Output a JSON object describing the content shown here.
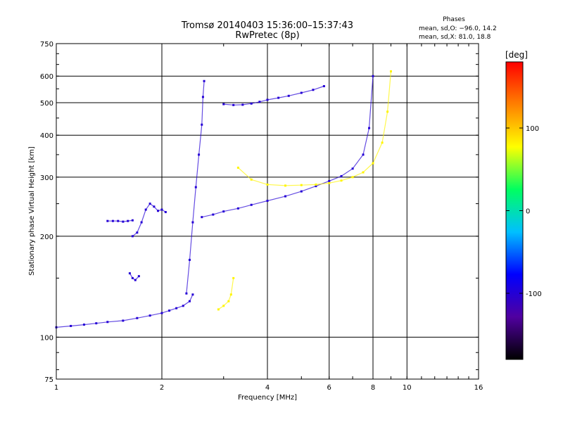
{
  "chart_data": {
    "type": "scatter",
    "title": "Tromsø 20140403 15:36:00–15:37:43",
    "subtitle": "RwPretec (8p)",
    "xlabel": "Frequency [MHz]",
    "ylabel": "Stationary phase Virtual Height [km]",
    "x_scale": "log",
    "y_scale": "log",
    "xlim": [
      1,
      16
    ],
    "ylim": [
      75,
      750
    ],
    "x_ticks": [
      1,
      2,
      4,
      6,
      8,
      10,
      16
    ],
    "y_ticks": [
      75,
      100,
      200,
      300,
      400,
      500,
      600,
      750
    ],
    "x_grid": [
      2,
      4,
      6,
      8,
      10
    ],
    "y_grid": [
      100,
      200,
      300,
      400,
      500,
      600
    ],
    "grid": true,
    "stats": {
      "heading": "Phases",
      "line_o": "mean, sd,O: −96.0, 14.2",
      "line_x": "mean, sd,X:  81.0, 18.8"
    },
    "colorbar": {
      "label": "[deg]",
      "ticks": [
        100,
        0,
        -100
      ],
      "range": [
        -180,
        180
      ],
      "stops": [
        "#000000",
        "#5000a0",
        "#0000ff",
        "#00c0ff",
        "#00ff60",
        "#ffff00",
        "#ff8000",
        "#ff0000"
      ]
    },
    "series": [
      {
        "trace": "low-o",
        "phase": -100,
        "x": [
          1.0,
          1.1,
          1.2,
          1.3,
          1.4,
          1.55,
          1.7,
          1.85,
          2.0,
          2.1,
          2.2,
          2.3,
          2.4,
          2.45
        ],
        "y": [
          107,
          108,
          109,
          110,
          111,
          112,
          114,
          116,
          118,
          120,
          122,
          124,
          128,
          134
        ]
      },
      {
        "trace": "es-patch",
        "phase": -100,
        "x": [
          1.4,
          1.45,
          1.5,
          1.55,
          1.6,
          1.65
        ],
        "y": [
          222,
          222,
          222,
          221,
          222,
          223
        ]
      },
      {
        "trace": "slanted",
        "phase": -100,
        "x": [
          1.65,
          1.7,
          1.75,
          1.8,
          1.85,
          1.9,
          1.95,
          2.0,
          2.05
        ],
        "y": [
          200,
          205,
          220,
          240,
          250,
          245,
          238,
          240,
          236
        ]
      },
      {
        "trace": "low-cusp",
        "phase": -100,
        "x": [
          1.62,
          1.65,
          1.68,
          1.72
        ],
        "y": [
          155,
          150,
          148,
          152
        ]
      },
      {
        "trace": "spread-f-column",
        "phase": -100,
        "x": [
          2.35,
          2.4,
          2.45,
          2.5,
          2.55,
          2.6,
          2.62,
          2.64
        ],
        "y": [
          135,
          170,
          220,
          280,
          350,
          430,
          520,
          580
        ]
      },
      {
        "trace": "f2-o-upper",
        "phase": -100,
        "x": [
          3.0,
          3.2,
          3.4,
          3.6,
          3.8,
          4.0,
          4.3,
          4.6,
          5.0,
          5.4,
          5.8
        ],
        "y": [
          495,
          492,
          493,
          497,
          503,
          510,
          517,
          524,
          535,
          546,
          560
        ]
      },
      {
        "trace": "f-o-lower",
        "phase": -100,
        "x": [
          2.6,
          2.8,
          3.0,
          3.3,
          3.6,
          4.0,
          4.5,
          5.0,
          5.5,
          6.0,
          6.5,
          7.0,
          7.5,
          7.8,
          8.0
        ],
        "y": [
          228,
          232,
          237,
          242,
          248,
          255,
          263,
          272,
          282,
          292,
          302,
          318,
          350,
          420,
          600
        ]
      },
      {
        "trace": "f-x",
        "phase": 81,
        "x": [
          3.3,
          3.6,
          4.0,
          4.5,
          5.0,
          5.5,
          6.0,
          6.5,
          7.0,
          7.5,
          8.0,
          8.5,
          8.8,
          9.0
        ],
        "y": [
          320,
          295,
          285,
          283,
          284,
          285,
          288,
          293,
          300,
          310,
          330,
          380,
          470,
          620
        ]
      },
      {
        "trace": "faint-x-low",
        "phase": 81,
        "x": [
          2.9,
          3.0,
          3.1,
          3.15,
          3.2
        ],
        "y": [
          121,
          124,
          128,
          134,
          150
        ]
      }
    ]
  }
}
